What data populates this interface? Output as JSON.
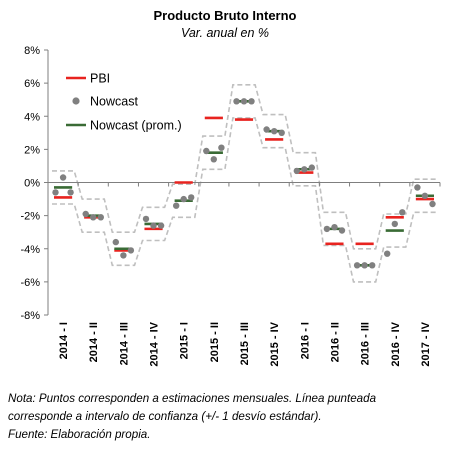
{
  "chart_data": {
    "type": "line",
    "title": "Producto Bruto Interno",
    "subtitle": "Var. anual en %",
    "ylim": [
      -8,
      8
    ],
    "yticks": [
      "8%",
      "6%",
      "4%",
      "2%",
      "0%",
      "-2%",
      "-4%",
      "-6%",
      "-8%"
    ],
    "ytick_values": [
      8,
      6,
      4,
      2,
      0,
      -2,
      -4,
      -6,
      -8
    ],
    "categories": [
      "2014 - I",
      "2014 - II",
      "2014 - III",
      "2014 - IV",
      "2015 - I",
      "2015 - II",
      "2015 - III",
      "2015 - IV",
      "2016 - I",
      "2016 - II",
      "2016 - III",
      "2016 - IV",
      "2017 - IV"
    ],
    "legend": [
      "PBI",
      "Nowcast",
      "Nowcast (prom.)"
    ],
    "legend_position": "top-left",
    "colors": {
      "pbi": "#e8231f",
      "nowcast": "#808080",
      "nowcast_prom": "#3a6b35",
      "band": "#bfbfbf",
      "axis": "#7f7f7f"
    },
    "series": [
      {
        "name": "PBI",
        "values": [
          -0.9,
          -2.1,
          -4.1,
          -2.8,
          0.0,
          3.9,
          3.8,
          2.6,
          0.6,
          -3.7,
          -3.7,
          -2.1,
          -1.0
        ]
      },
      {
        "name": "Nowcast",
        "values": [
          [
            -0.6,
            0.3,
            -0.6
          ],
          [
            -1.9,
            -2.1,
            -2.1
          ],
          [
            -3.6,
            -4.4,
            -4.1
          ],
          [
            -2.2,
            -2.6,
            -2.6
          ],
          [
            -1.4,
            -1.0,
            -0.9
          ],
          [
            1.9,
            1.4,
            2.1
          ],
          [
            4.9,
            4.9,
            4.9
          ],
          [
            3.2,
            3.1,
            3.0
          ],
          [
            0.7,
            0.8,
            0.9
          ],
          [
            -2.8,
            -2.7,
            -2.9
          ],
          [
            -5.0,
            -5.0,
            -5.0
          ],
          [
            -4.3,
            -2.5,
            -1.8
          ],
          [
            -0.3,
            -0.8,
            -1.3
          ]
        ]
      },
      {
        "name": "Nowcast (prom.)",
        "values": [
          -0.3,
          -2.0,
          -4.0,
          -2.5,
          -1.1,
          1.8,
          4.9,
          3.1,
          0.8,
          -2.8,
          -5.0,
          -2.9,
          -0.8
        ]
      }
    ],
    "band_upper": [
      0.7,
      -1.0,
      -3.0,
      -1.5,
      -0.1,
      2.8,
      5.9,
      4.1,
      1.8,
      -1.8,
      -4.0,
      -1.9,
      0.2
    ],
    "band_lower": [
      -1.3,
      -3.0,
      -5.0,
      -3.5,
      -2.1,
      0.8,
      3.9,
      2.1,
      -0.2,
      -3.8,
      -6.0,
      -3.9,
      -1.8
    ]
  },
  "note": {
    "line1": "Nota: Puntos corresponden a estimaciones mensuales. Línea punteada",
    "line2": "corresponde a intervalo de confianza (+/- 1 desvío estándar).",
    "line3": "Fuente: Elaboración propia."
  }
}
